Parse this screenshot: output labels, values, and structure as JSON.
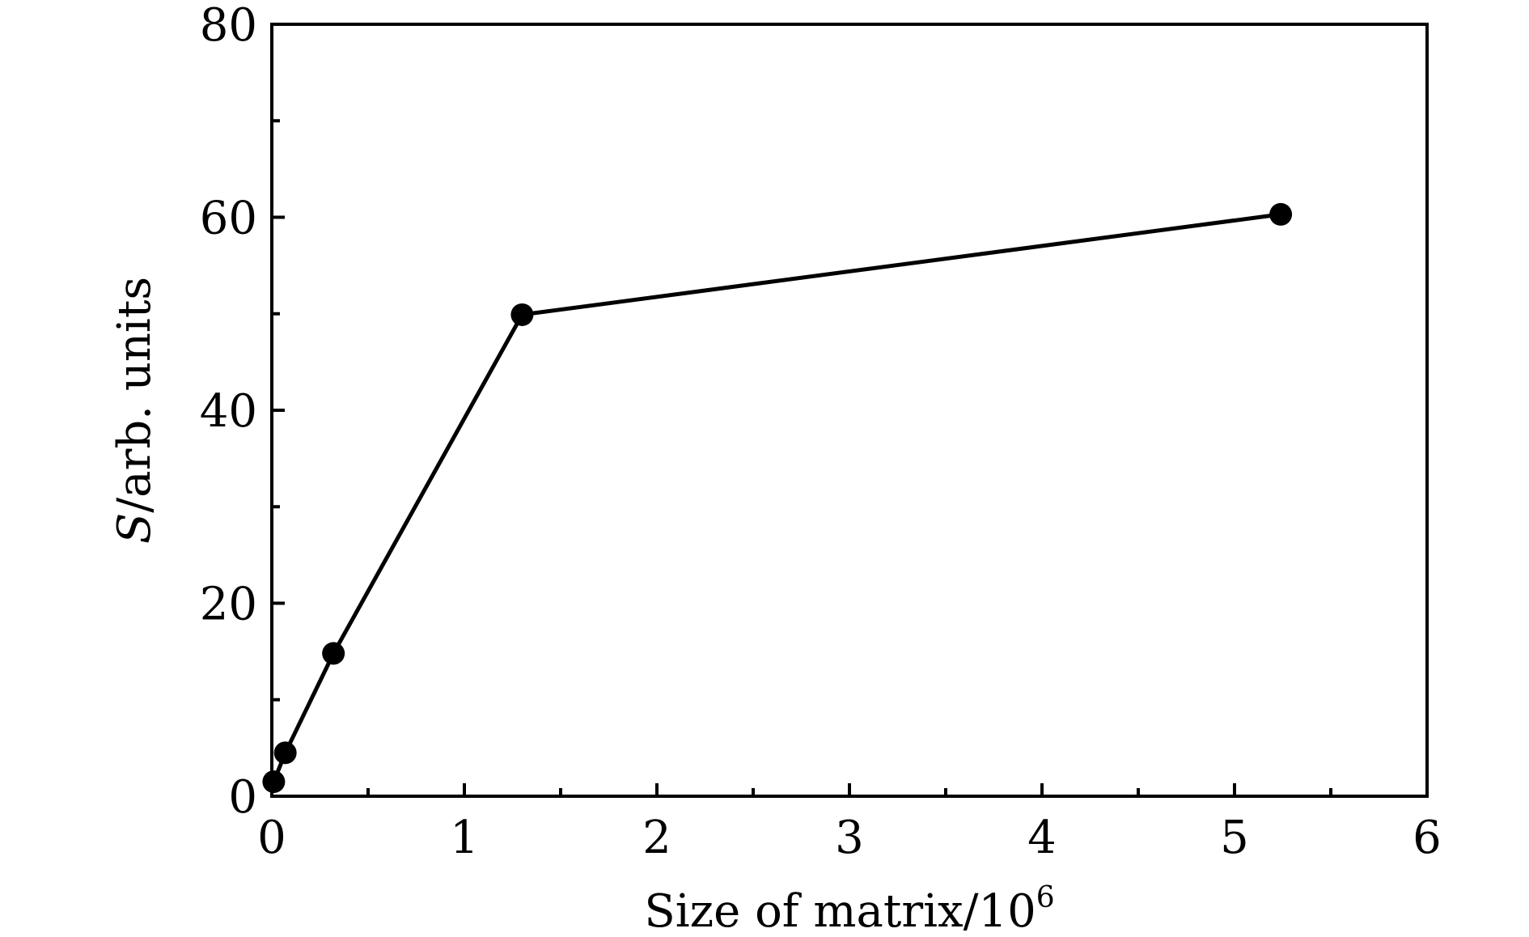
{
  "chart_data": {
    "type": "line",
    "title": "",
    "xlabel_main": "Size of matrix/10",
    "xlabel_sup": "6",
    "ylabel_italic": "S",
    "ylabel_rest": "/arb. units",
    "xlim": [
      0,
      6
    ],
    "ylim": [
      0,
      80
    ],
    "x_ticks": [
      "0",
      "1",
      "2",
      "3",
      "4",
      "5",
      "6"
    ],
    "y_ticks": [
      "0",
      "20",
      "40",
      "60",
      "80"
    ],
    "grid": false,
    "legend": "none",
    "series": [
      {
        "x": [
          0.01,
          0.07,
          0.32,
          1.3,
          5.24
        ],
        "y": [
          1.5,
          4.5,
          14.8,
          49.9,
          60.3
        ]
      }
    ],
    "colors": {
      "line": "#000000",
      "marker": "#000000",
      "frame": "#000000"
    }
  }
}
